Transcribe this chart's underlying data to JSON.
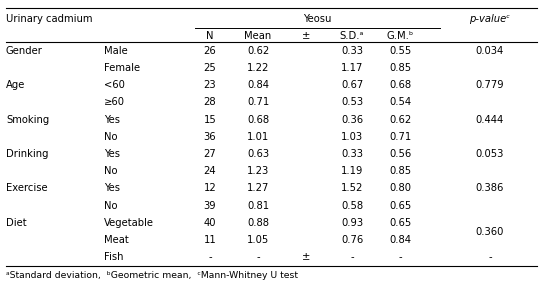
{
  "title": "Urinary cadmium",
  "group_header": "Yeosu",
  "pvalue_header": "p-valueᶜ",
  "col_headers": [
    "N",
    "Mean",
    "±",
    "S.D.ᵃ",
    "G.M.ᵇ"
  ],
  "rows": [
    {
      "category": "Gender",
      "subcategory": "Male",
      "N": "26",
      "Mean": "0.62",
      "pm": "",
      "SD": "0.33",
      "GM": "0.55",
      "pvalue": "0.034",
      "pspan": 1
    },
    {
      "category": "",
      "subcategory": "Female",
      "N": "25",
      "Mean": "1.22",
      "pm": "",
      "SD": "1.17",
      "GM": "0.85",
      "pvalue": "",
      "pspan": 0
    },
    {
      "category": "Age",
      "subcategory": "<60",
      "N": "23",
      "Mean": "0.84",
      "pm": "",
      "SD": "0.67",
      "GM": "0.68",
      "pvalue": "0.779",
      "pspan": 1
    },
    {
      "category": "",
      "subcategory": "≥60",
      "N": "28",
      "Mean": "0.71",
      "pm": "",
      "SD": "0.53",
      "GM": "0.54",
      "pvalue": "",
      "pspan": 0
    },
    {
      "category": "Smoking",
      "subcategory": "Yes",
      "N": "15",
      "Mean": "0.68",
      "pm": "",
      "SD": "0.36",
      "GM": "0.62",
      "pvalue": "0.444",
      "pspan": 1
    },
    {
      "category": "",
      "subcategory": "No",
      "N": "36",
      "Mean": "1.01",
      "pm": "",
      "SD": "1.03",
      "GM": "0.71",
      "pvalue": "",
      "pspan": 0
    },
    {
      "category": "Drinking",
      "subcategory": "Yes",
      "N": "27",
      "Mean": "0.63",
      "pm": "",
      "SD": "0.33",
      "GM": "0.56",
      "pvalue": "0.053",
      "pspan": 1
    },
    {
      "category": "",
      "subcategory": "No",
      "N": "24",
      "Mean": "1.23",
      "pm": "",
      "SD": "1.19",
      "GM": "0.85",
      "pvalue": "",
      "pspan": 0
    },
    {
      "category": "Exercise",
      "subcategory": "Yes",
      "N": "12",
      "Mean": "1.27",
      "pm": "",
      "SD": "1.52",
      "GM": "0.80",
      "pvalue": "0.386",
      "pspan": 1
    },
    {
      "category": "",
      "subcategory": "No",
      "N": "39",
      "Mean": "0.81",
      "pm": "",
      "SD": "0.58",
      "GM": "0.65",
      "pvalue": "",
      "pspan": 0
    },
    {
      "category": "Diet",
      "subcategory": "Vegetable",
      "N": "40",
      "Mean": "0.88",
      "pm": "",
      "SD": "0.93",
      "GM": "0.65",
      "pvalue": "0.360",
      "pspan": 2
    },
    {
      "category": "",
      "subcategory": "Meat",
      "N": "11",
      "Mean": "1.05",
      "pm": "",
      "SD": "0.76",
      "GM": "0.84",
      "pvalue": "",
      "pspan": 0
    },
    {
      "category": "",
      "subcategory": "Fish",
      "N": "-",
      "Mean": "-",
      "pm": "±",
      "SD": "-",
      "GM": "-",
      "pvalue": "-",
      "pspan": 0
    }
  ],
  "footnote": "ᵃStandard deviation,  ᵇGeometric mean,  ᶜMann-Whitney U test",
  "font_size": 7.2,
  "bg_color": "#ffffff"
}
